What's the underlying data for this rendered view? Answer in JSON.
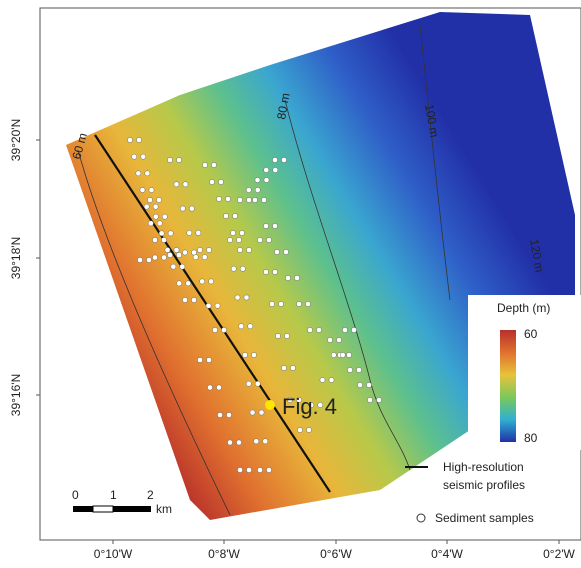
{
  "map": {
    "lon_labels": [
      "0°10'W",
      "0°8'W",
      "0°6'W",
      "0°4'W",
      "0°2'W"
    ],
    "lat_labels": [
      "39°20'N",
      "39°18'N",
      "39°16'N"
    ],
    "contour_labels": [
      "60 m",
      "80 m",
      "100 m",
      "120 m"
    ],
    "figure_label": "Fig. 4",
    "scale": {
      "labels": [
        "0",
        "1",
        "2"
      ],
      "unit": "km"
    },
    "depth_legend": {
      "title": "Depth (m)",
      "top": "60",
      "bottom": "80"
    },
    "legend": {
      "line": [
        "High-resolution",
        "seismic profiles"
      ],
      "point": "Sediment samples"
    }
  }
}
